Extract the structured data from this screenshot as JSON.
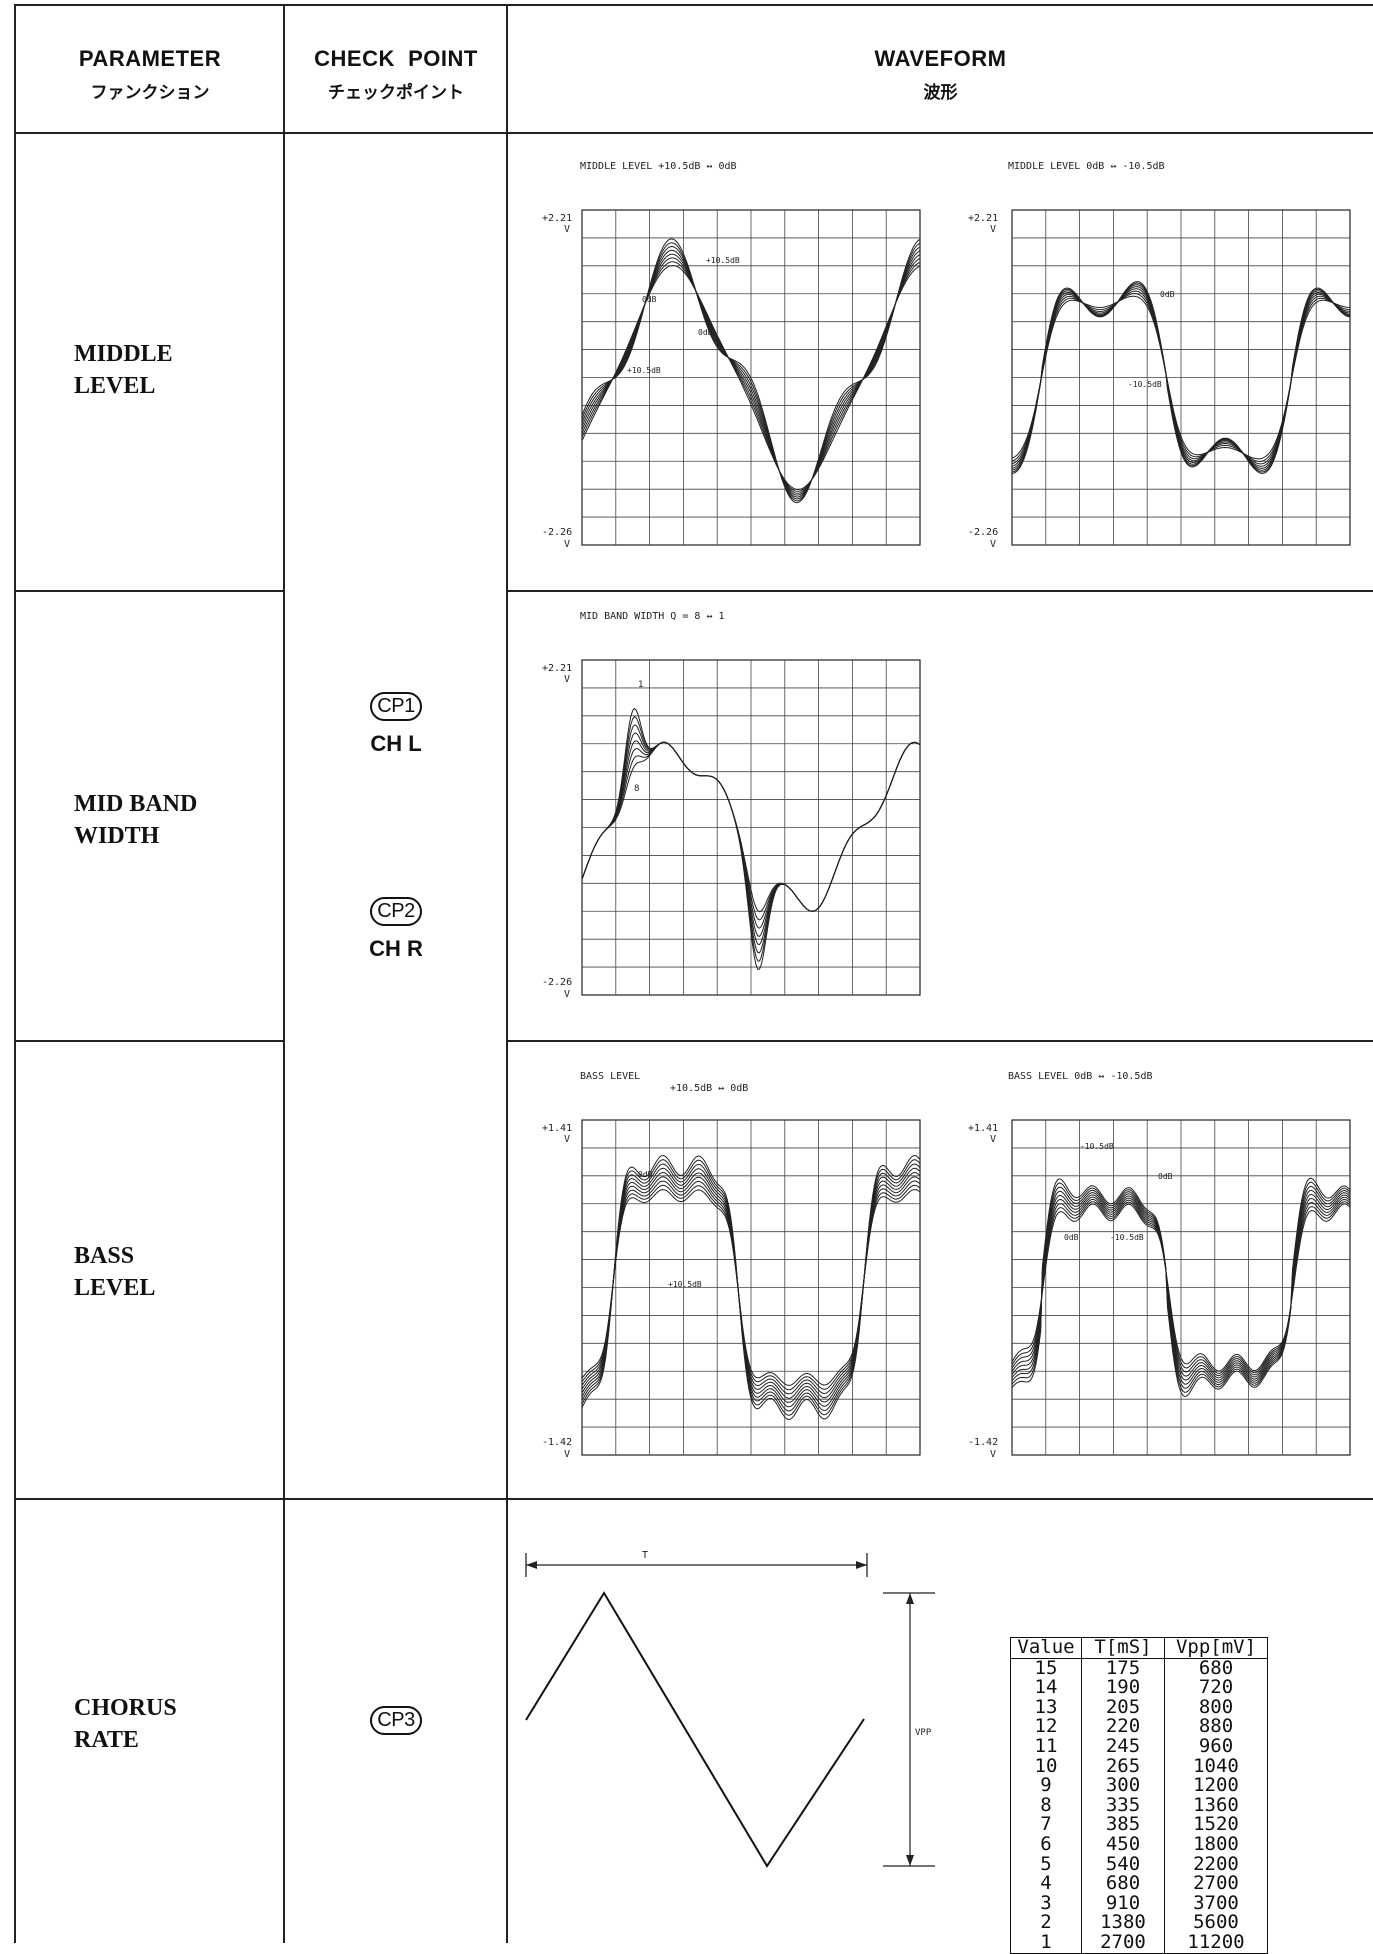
{
  "header": {
    "parameter_en": "PARAMETER",
    "parameter_jp": "ファンクション",
    "checkpoint_en": "CHECK  POINT",
    "checkpoint_jp": "チェックポイント",
    "waveform_en": "WAVEFORM",
    "waveform_jp": "波形"
  },
  "rows": {
    "middle_level": {
      "line1": "MIDDLE",
      "line2": "LEVEL"
    },
    "mid_band_width": {
      "line1": "MID BAND",
      "line2": "WIDTH"
    },
    "bass_level": {
      "line1": "BASS",
      "line2": "LEVEL"
    },
    "chorus_rate": {
      "line1": "CHORUS",
      "line2": "RATE"
    }
  },
  "checkpoints": {
    "cp1": "CP1",
    "cp1_ch": "CH L",
    "cp2": "CP2",
    "cp2_ch": "CH R",
    "cp3": "CP3"
  },
  "plots": {
    "mid1": {
      "title": "MIDDLE LEVEL  +10.5dB ↔ 0dB",
      "ytop": "+2.21",
      "ybot": "-2.26",
      "unit": "V",
      "labels": [
        "+10.5dB",
        "0dB",
        "0dB",
        "+10.5dB"
      ]
    },
    "mid2": {
      "title": "MIDDLE LEVEL   0dB ↔ -10.5dB",
      "ytop": "+2.21",
      "ybot": "-2.26",
      "unit": "V",
      "labels": [
        "0dB",
        "-10.5dB"
      ]
    },
    "band": {
      "title": "MID BAND WIDTH   Q = 8 ↔ 1",
      "ytop": "+2.21",
      "ybot": "-2.26",
      "unit": "V",
      "labels": [
        "1",
        "8"
      ]
    },
    "bass1": {
      "title": "BASS LEVEL",
      "title2": "+10.5dB ↔ 0dB",
      "ytop": "+1.41",
      "ybot": "-1.42",
      "unit": "V",
      "labels": [
        "0dB",
        "+10.5dB"
      ]
    },
    "bass2": {
      "title": "BASS LEVEL   0dB ↔ -10.5dB",
      "ytop": "+1.41",
      "ybot": "-1.42",
      "unit": "V",
      "labels": [
        "-10.5dB",
        "0dB",
        "0dB",
        "-10.5dB"
      ]
    }
  },
  "triangle": {
    "period_label": "T",
    "amp_label": "VPP"
  },
  "table": {
    "headers": [
      "Value",
      "T[mS]",
      "Vpp[mV]"
    ],
    "rows": [
      [
        "15",
        "175",
        "680"
      ],
      [
        "14",
        "190",
        "720"
      ],
      [
        "13",
        "205",
        "800"
      ],
      [
        "12",
        "220",
        "880"
      ],
      [
        "11",
        "245",
        "960"
      ],
      [
        "10",
        "265",
        "1040"
      ],
      [
        "9",
        "300",
        "1200"
      ],
      [
        "8",
        "335",
        "1360"
      ],
      [
        "7",
        "385",
        "1520"
      ],
      [
        "6",
        "450",
        "1800"
      ],
      [
        "5",
        "540",
        "2200"
      ],
      [
        "4",
        "680",
        "2700"
      ],
      [
        "3",
        "910",
        "3700"
      ],
      [
        "2",
        "1380",
        "5600"
      ],
      [
        "1",
        "2700",
        "11200"
      ]
    ]
  }
}
